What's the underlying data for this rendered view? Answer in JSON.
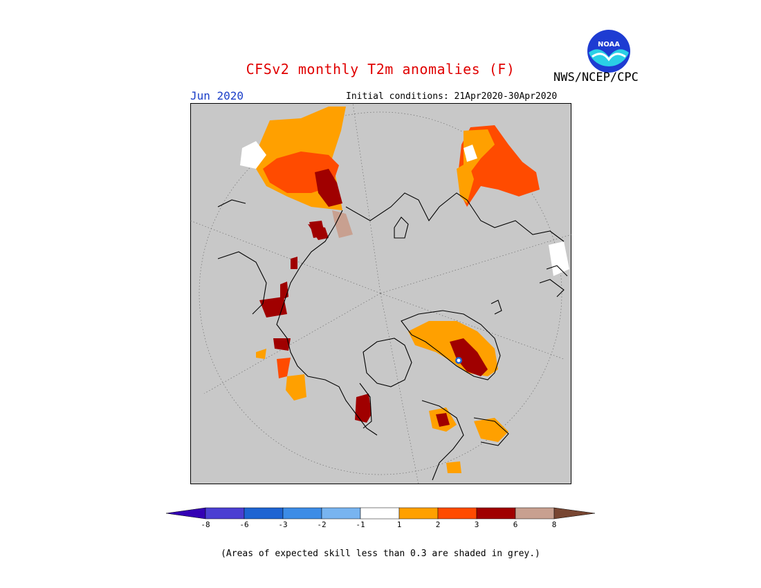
{
  "header": {
    "title": "CFSv2 monthly T2m anomalies (F)",
    "agency": "NWS/NCEP/CPC",
    "logo_text": "NOAA",
    "month": "Jun 2020",
    "initial_conditions": "Initial conditions: 21Apr2020-30Apr2020"
  },
  "legend": {
    "colors": [
      "#3300b4",
      "#4b3fd2",
      "#1e64d2",
      "#3c8ce6",
      "#78b4f0",
      "#ffffff",
      "#ffa000",
      "#ff4b00",
      "#a00000",
      "#c8a090",
      "#784632"
    ],
    "tick_labels": [
      "-8",
      "-6",
      "-3",
      "-2",
      "-1",
      "1",
      "2",
      "3",
      "6",
      "8"
    ],
    "note": "(Areas of expected skill less than 0.3 are shaded in grey.)"
  },
  "map": {
    "projection": "north polar stereographic",
    "background_color": "#c8c8c8",
    "coastline_color": "#000000"
  }
}
